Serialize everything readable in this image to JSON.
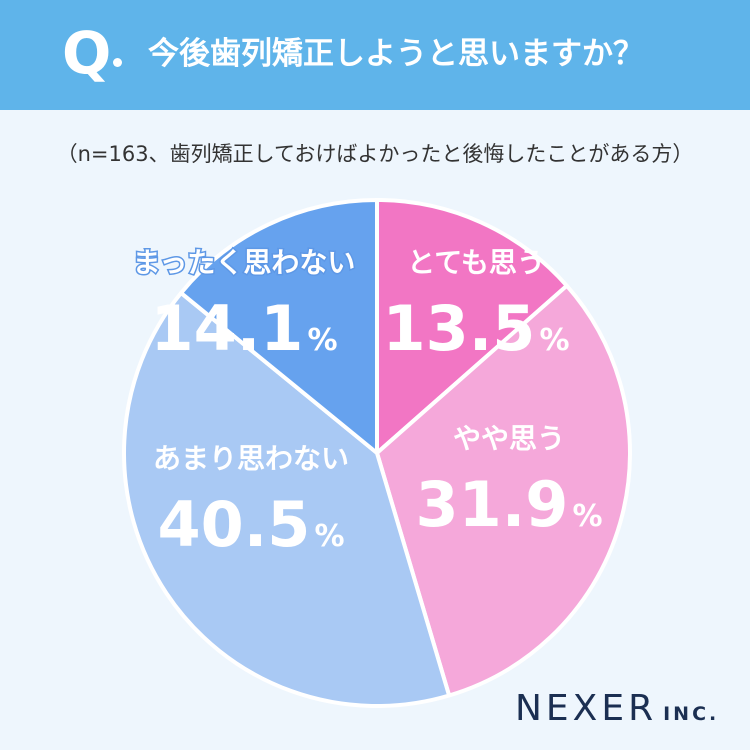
{
  "header": {
    "q_mark": "Q",
    "question": "今後歯列矯正しようと思いますか？"
  },
  "note": "（n=163、歯列矯正しておけばよかったと後悔したことがある方）",
  "brand": {
    "name": "NEXER",
    "suffix": "INC."
  },
  "colors": {
    "header_bg": "#5fb4ea",
    "background": "#eef6fd",
    "brand_text": "#1b2f52"
  },
  "chart_data": {
    "type": "pie",
    "slices": [
      {
        "label": "とても思う",
        "value": 13.5,
        "value_label": "13.5",
        "unit": "%",
        "color": "#f276c4"
      },
      {
        "label": "やや思う",
        "value": 31.9,
        "value_label": "31.9",
        "unit": "%",
        "color": "#f5a8da"
      },
      {
        "label": "あまり思わない",
        "value": 40.5,
        "value_label": "40.5",
        "unit": "%",
        "color": "#a9c9f4"
      },
      {
        "label": "まったく思わない",
        "value": 14.1,
        "value_label": "14.1",
        "unit": "%",
        "color": "#66a2ee"
      }
    ],
    "start": "12 o'clock",
    "direction": "clockwise"
  }
}
